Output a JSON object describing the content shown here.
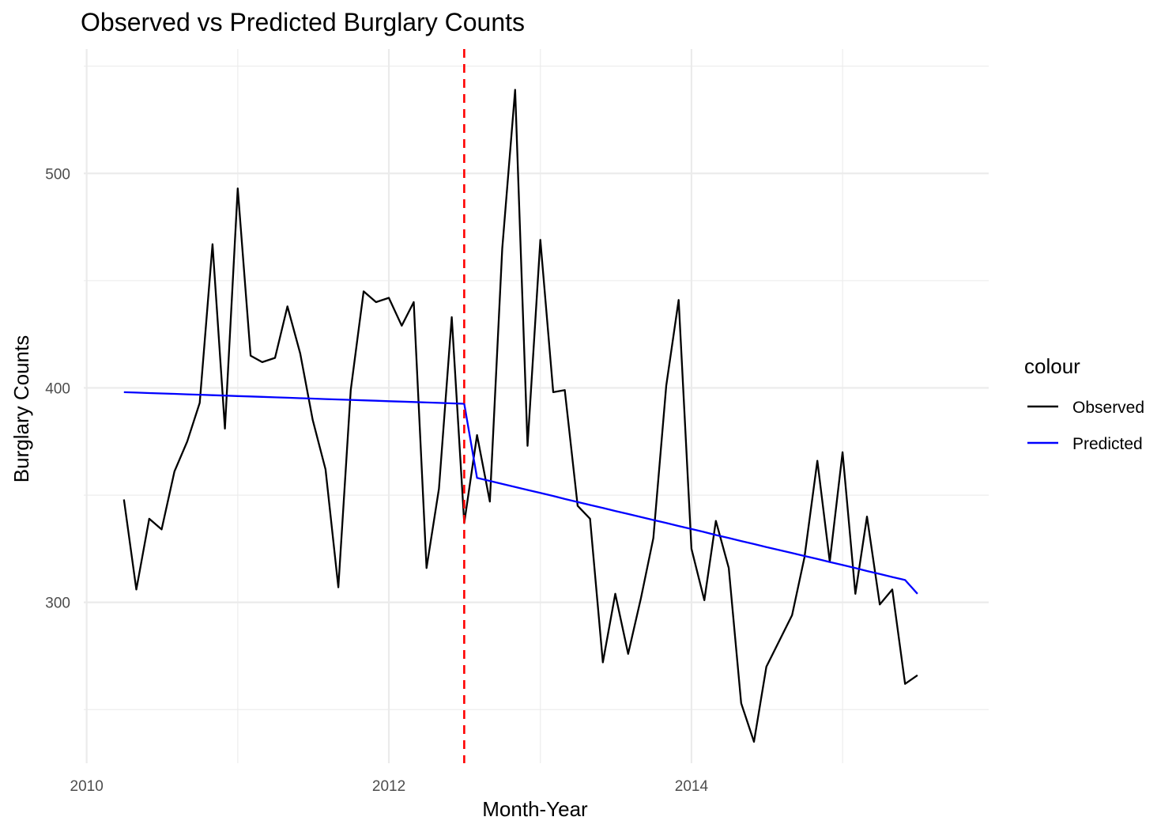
{
  "chart_data": {
    "type": "line",
    "title": "Observed vs Predicted Burglary Counts",
    "xlabel": "Month-Year",
    "ylabel": "Burglary Counts",
    "xlim": [
      "2009-12-25",
      "2015-12-20"
    ],
    "ylim": [
      225,
      558
    ],
    "x_ticks": [
      "2010-01-01",
      "2012-01-01",
      "2014-01-01"
    ],
    "x_tick_labels": [
      "2010",
      "2012",
      "2014"
    ],
    "y_ticks": [
      300,
      400,
      500
    ],
    "y_tick_labels": [
      "300",
      "400",
      "500"
    ],
    "grid": true,
    "intervention_date": "2012-07-01",
    "intervention_line_color": "#ff0000",
    "legend": {
      "title": "colour",
      "position": "right",
      "entries": [
        {
          "label": "Observed",
          "color": "#000000"
        },
        {
          "label": "Predicted",
          "color": "#0000ff"
        }
      ]
    },
    "x": [
      "2010-04",
      "2010-05",
      "2010-06",
      "2010-07",
      "2010-08",
      "2010-09",
      "2010-10",
      "2010-11",
      "2010-12",
      "2011-01",
      "2011-02",
      "2011-03",
      "2011-04",
      "2011-05",
      "2011-06",
      "2011-07",
      "2011-08",
      "2011-09",
      "2011-10",
      "2011-11",
      "2011-12",
      "2012-01",
      "2012-02",
      "2012-03",
      "2012-04",
      "2012-05",
      "2012-06",
      "2012-07",
      "2012-08",
      "2012-09",
      "2012-10",
      "2012-11",
      "2012-12",
      "2013-01",
      "2013-02",
      "2013-03",
      "2013-04",
      "2013-05",
      "2013-06",
      "2013-07",
      "2013-08",
      "2013-09",
      "2013-10",
      "2013-11",
      "2013-12",
      "2014-01",
      "2014-02",
      "2014-03",
      "2014-04",
      "2014-05",
      "2014-06",
      "2014-07",
      "2014-08",
      "2014-09",
      "2014-10",
      "2014-11",
      "2014-12",
      "2015-01",
      "2015-02",
      "2015-03",
      "2015-04",
      "2015-05",
      "2015-06",
      "2015-07"
    ],
    "series": [
      {
        "name": "Observed",
        "color": "#000000",
        "values": [
          348,
          306,
          339,
          334,
          361,
          375,
          393,
          467,
          381,
          493,
          415,
          412,
          414,
          438,
          416,
          385,
          362,
          307,
          399,
          445,
          440,
          442,
          429,
          440,
          316,
          353,
          433,
          337,
          378,
          347,
          465,
          539,
          373,
          469,
          398,
          399,
          345,
          339,
          272,
          304,
          276,
          302,
          330,
          401,
          441,
          325,
          301,
          338,
          316,
          253,
          235,
          270,
          282,
          294,
          321,
          366,
          319,
          370,
          304,
          340,
          299,
          306,
          262,
          266
        ]
      },
      {
        "name": "Predicted",
        "color": "#0000ff",
        "values": [
          398,
          397.8,
          397.6,
          397.4,
          397.2,
          397.0,
          396.8,
          396.6,
          396.4,
          396.2,
          396.0,
          395.8,
          395.6,
          395.4,
          395.2,
          395.0,
          394.8,
          394.6,
          394.4,
          394.2,
          394.0,
          393.8,
          393.6,
          393.4,
          393.2,
          393.0,
          392.8,
          392.6,
          358.0,
          356.6,
          355.2,
          353.8,
          352.4,
          351.0,
          349.6,
          348.2,
          346.8,
          345.4,
          344.0,
          342.6,
          341.2,
          339.8,
          338.4,
          337.0,
          335.6,
          334.2,
          332.8,
          331.4,
          330.0,
          328.6,
          327.2,
          325.8,
          324.4,
          323.0,
          321.6,
          320.2,
          318.8,
          317.4,
          316.0,
          314.6,
          313.2,
          311.8,
          310.4,
          304.0
        ]
      }
    ]
  }
}
